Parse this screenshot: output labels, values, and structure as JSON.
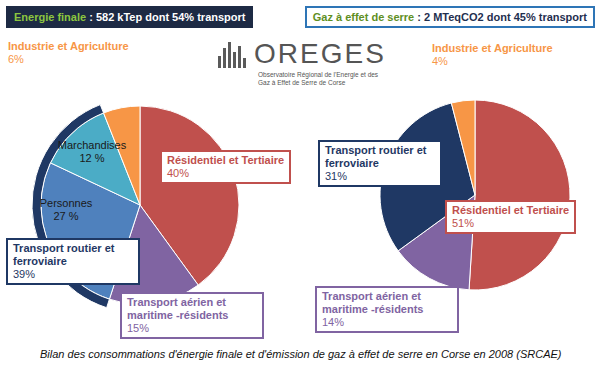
{
  "chart_data": [
    {
      "type": "pie",
      "title": "Energie finale : 582 kTep dont 54% transport",
      "categories": [
        "Résidentiel et Tertiaire",
        "Transport aérien et maritime -résidents",
        "Personnes",
        "Marchandises",
        "Industrie et Agriculture"
      ],
      "values": [
        40,
        15,
        27,
        12,
        6
      ],
      "value_labels": [
        "40%",
        "15%",
        "27 %",
        "12 %",
        "6%"
      ],
      "colors": [
        "#c0504d",
        "#8064a2",
        "#4f81bd",
        "#4bacc6",
        "#f79646"
      ],
      "groups": [
        {
          "name": "Transport routier et ferroviaire",
          "members": [
            "Personnes",
            "Marchandises"
          ],
          "value": 39,
          "value_label": "39%",
          "color": "#1f3864"
        }
      ],
      "data_labels": true
    },
    {
      "type": "pie",
      "title": "Gaz à effet de serre : 2 MTeqCO2 dont 45% transport",
      "categories": [
        "Résidentiel et Tertiaire",
        "Transport aérien et maritime -résidents",
        "Transport routier et ferroviaire",
        "Industrie et Agriculture"
      ],
      "values": [
        51,
        14,
        31,
        4
      ],
      "value_labels": [
        "51%",
        "14%",
        "31%",
        "4%"
      ],
      "colors": [
        "#c0504d",
        "#8064a2",
        "#1f3864",
        "#f79646"
      ],
      "data_labels": true
    }
  ],
  "logo": {
    "name": "OREGES",
    "subtitle": "Observatoire Régional de l'Energie et des Gaz à Effet de Serre de Corse"
  },
  "caption": "Bilan des consommations d'énergie finale et d'émission de gaz à effet de serre en Corse en 2008 (SRCAE)"
}
